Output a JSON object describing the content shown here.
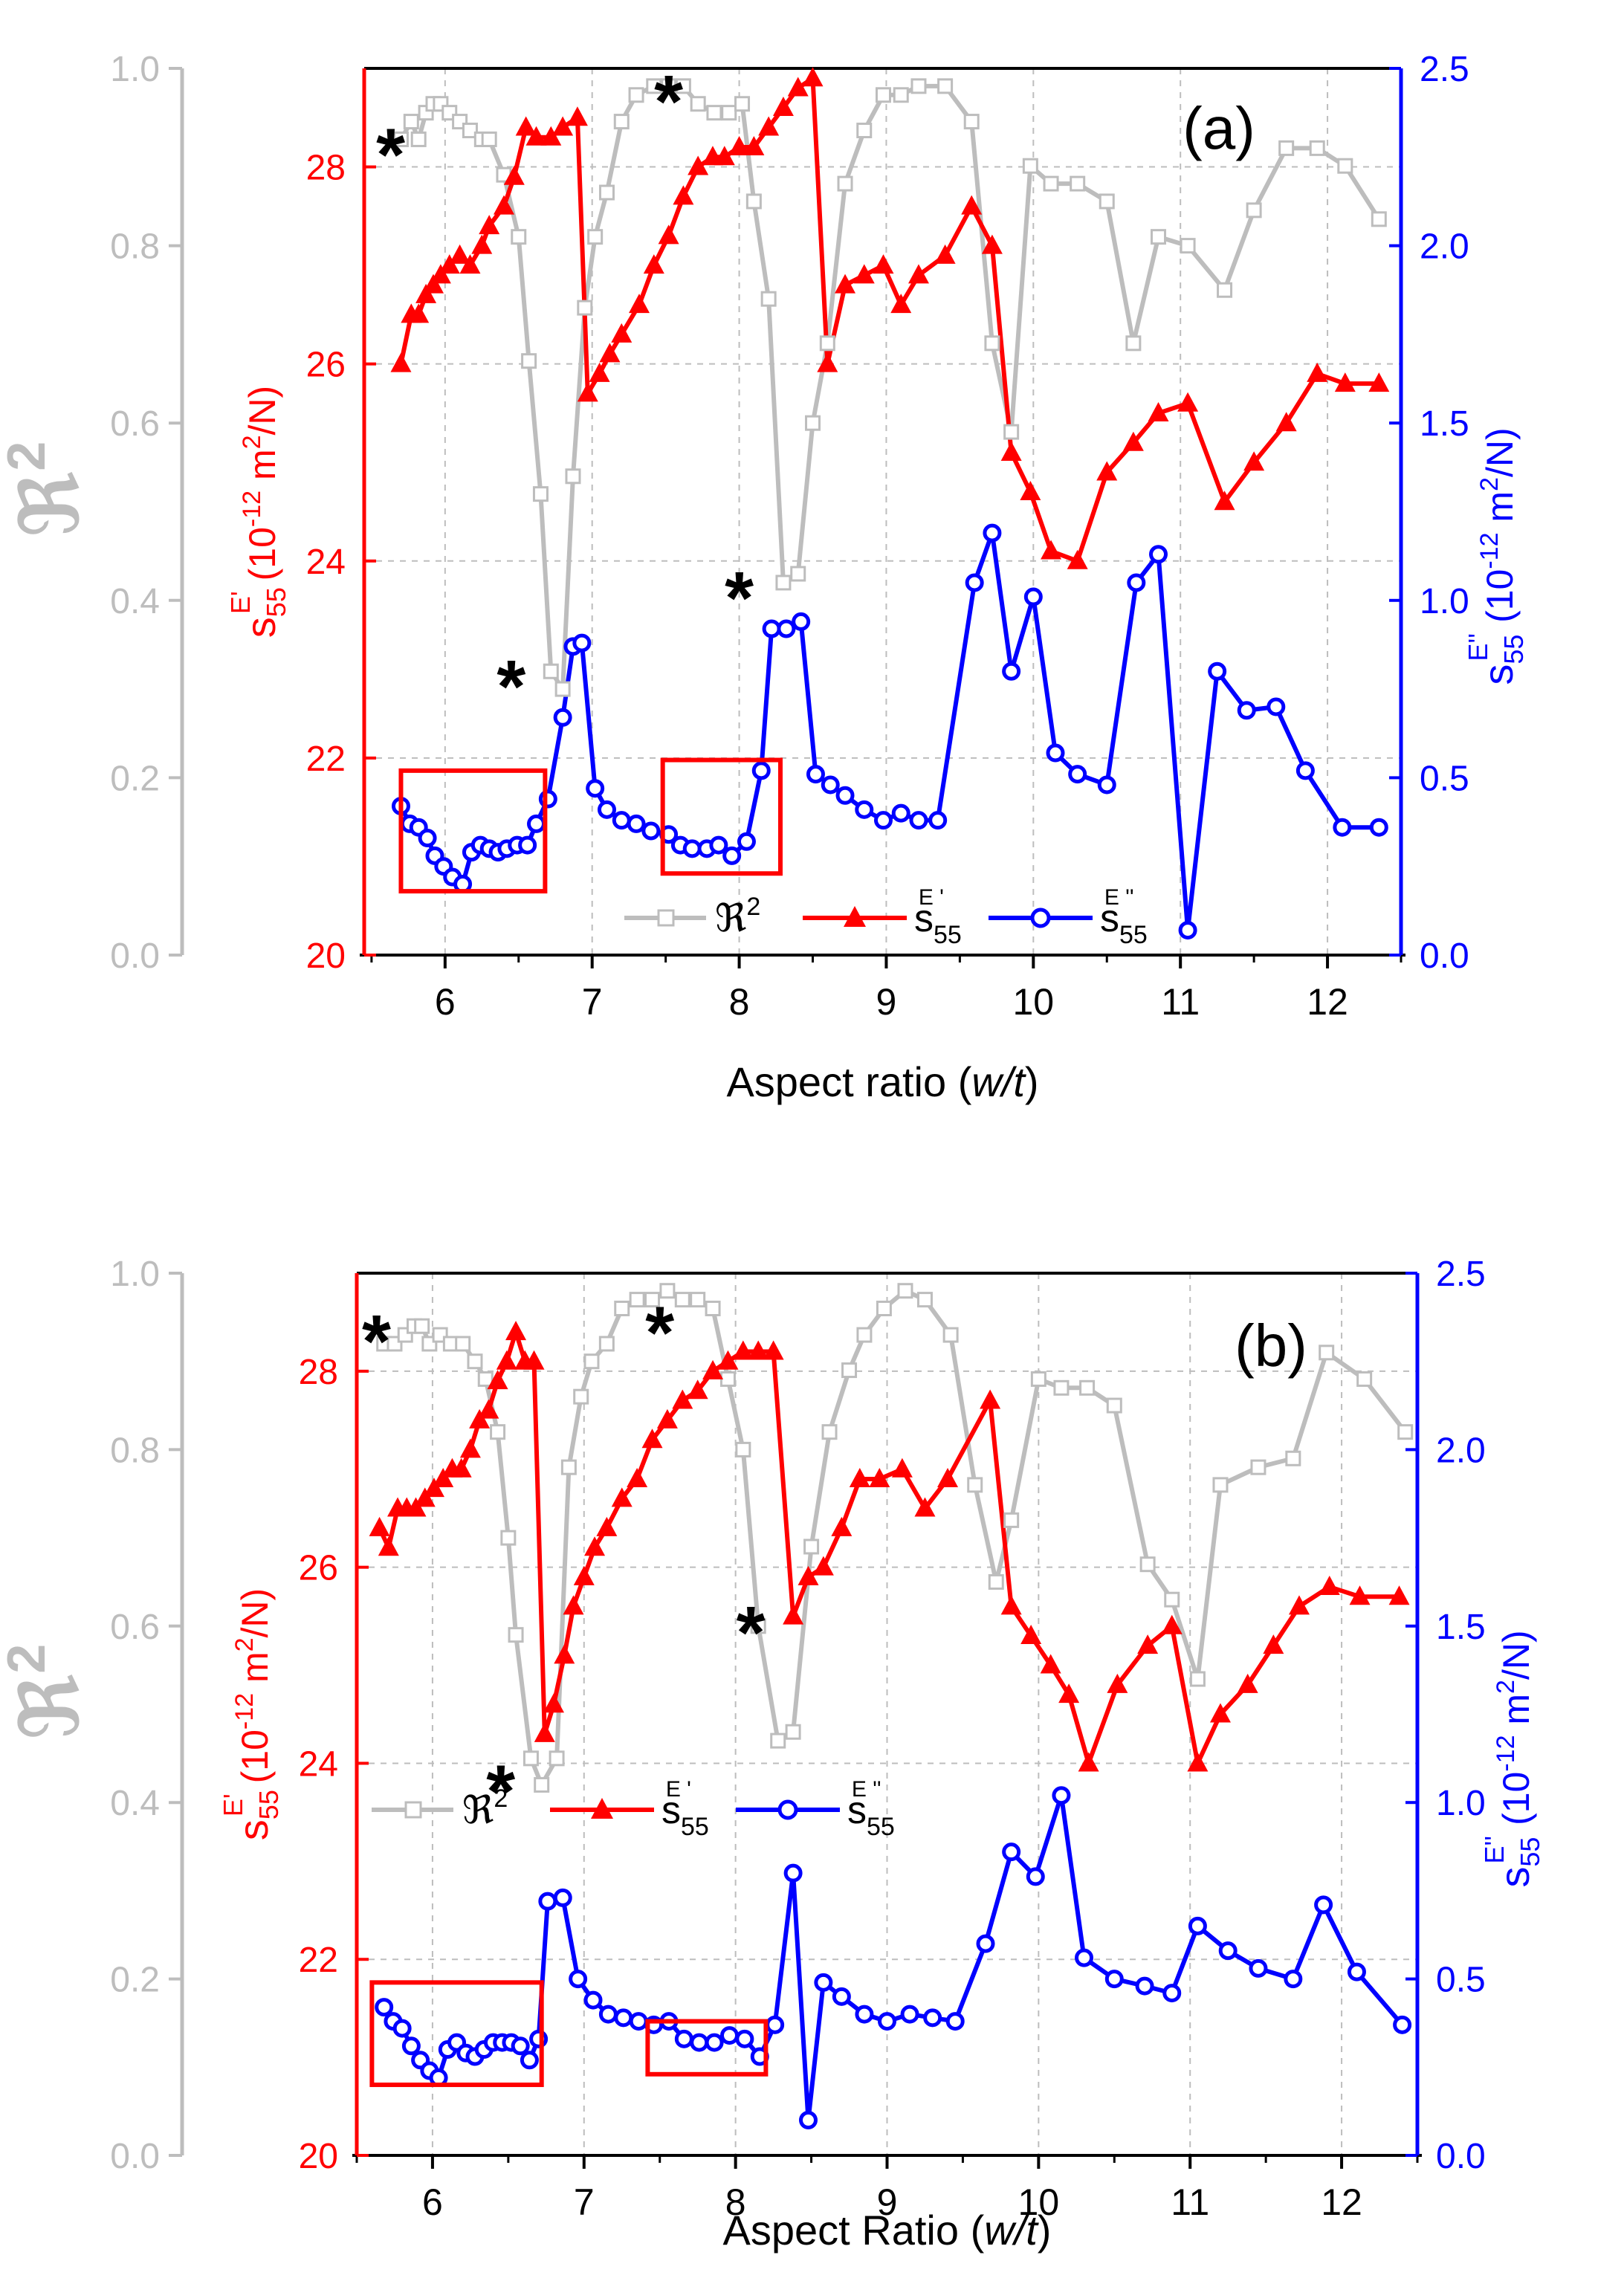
{
  "colors": {
    "r2": "#bdbdbd",
    "real": "#ff0000",
    "imag": "#0000ff",
    "box": "#ff0000",
    "grid": "#bdbdbd",
    "axis": "#000000",
    "text": "#000000"
  },
  "chart_data": [
    {
      "type": "line",
      "panel_label": "(a)",
      "xlabel_main": "Aspect ratio (",
      "xlabel_italic": "w/t",
      "xlabel_end": ")",
      "xlim": [
        5.45,
        12.5
      ],
      "xticks": [
        6,
        7,
        8,
        9,
        10,
        11,
        12
      ],
      "r2_axis": {
        "label_symbol": "ℜ",
        "label_sup": "2",
        "lim": [
          0,
          1.0
        ],
        "ticks": [
          0.0,
          0.2,
          0.4,
          0.6,
          0.8,
          1.0
        ],
        "tick_labels": [
          "0.0",
          "0.2",
          "0.4",
          "0.6",
          "0.8",
          "1.0"
        ]
      },
      "left_axis": {
        "label_main": "s",
        "label_sub": "55",
        "label_sup": "E'",
        "label_units": "(10",
        "label_exp": "-12",
        "label_units2": " m",
        "label_sq": "2",
        "label_units3": "/N)",
        "lim": [
          20,
          29
        ],
        "ticks": [
          20,
          22,
          24,
          26,
          28
        ],
        "tick_labels": [
          "20",
          "22",
          "24",
          "26",
          "28"
        ]
      },
      "right_axis": {
        "label_main": "s",
        "label_sub": "55",
        "label_sup": "E''",
        "label_units": "(10",
        "label_exp": "-12",
        "label_units2": " m",
        "label_sq": "2",
        "label_units3": "/N)",
        "lim": [
          0,
          2.5
        ],
        "ticks": [
          0.0,
          0.5,
          1.0,
          1.5,
          2.0,
          2.5
        ],
        "tick_labels": [
          "0.0",
          "0.5",
          "1.0",
          "1.5",
          "2.0",
          "2.5"
        ]
      },
      "legend": {
        "placement": "bottom-center",
        "r2_label": "ℜ",
        "r2_sup": "2",
        "real_label": "s",
        "real_sub": "55",
        "real_sup": "E '",
        "imag_label": "s",
        "imag_sub": "55",
        "imag_sup": "E ''"
      },
      "series": [
        {
          "name": "R2",
          "x": [
            5.7,
            5.77,
            5.82,
            5.87,
            5.92,
            5.97,
            6.03,
            6.1,
            6.17,
            6.25,
            6.3,
            6.4,
            6.5,
            6.57,
            6.65,
            6.72,
            6.8,
            6.87,
            6.95,
            7.02,
            7.1,
            7.2,
            7.3,
            7.42,
            7.52,
            7.62,
            7.72,
            7.83,
            7.93,
            8.02,
            8.1,
            8.2,
            8.3,
            8.4,
            8.5,
            8.6,
            8.72,
            8.85,
            8.98,
            9.1,
            9.22,
            9.4,
            9.58,
            9.72,
            9.85,
            9.98,
            10.12,
            10.3,
            10.5,
            10.68,
            10.85,
            11.05,
            11.3,
            11.5,
            11.72,
            11.93,
            12.12,
            12.35
          ],
          "values": [
            0.92,
            0.94,
            0.92,
            0.95,
            0.96,
            0.96,
            0.95,
            0.94,
            0.93,
            0.92,
            0.92,
            0.88,
            0.81,
            0.67,
            0.52,
            0.32,
            0.3,
            0.54,
            0.73,
            0.81,
            0.86,
            0.94,
            0.97,
            0.98,
            0.98,
            0.98,
            0.96,
            0.95,
            0.95,
            0.96,
            0.85,
            0.74,
            0.42,
            0.43,
            0.6,
            0.69,
            0.87,
            0.93,
            0.97,
            0.97,
            0.98,
            0.98,
            0.94,
            0.69,
            0.59,
            0.89,
            0.87,
            0.87,
            0.85,
            0.69,
            0.81,
            0.8,
            0.75,
            0.84,
            0.91,
            0.91,
            0.89,
            0.83
          ]
        },
        {
          "name": "s55E'",
          "x": [
            5.7,
            5.77,
            5.82,
            5.87,
            5.92,
            5.97,
            6.03,
            6.1,
            6.17,
            6.25,
            6.3,
            6.4,
            6.47,
            6.55,
            6.62,
            6.72,
            6.8,
            6.9,
            6.97,
            7.05,
            7.12,
            7.2,
            7.32,
            7.42,
            7.52,
            7.62,
            7.72,
            7.82,
            7.9,
            8.0,
            8.1,
            8.2,
            8.3,
            8.4,
            8.5,
            8.6,
            8.72,
            8.85,
            8.98,
            9.1,
            9.22,
            9.4,
            9.58,
            9.72,
            9.85,
            9.98,
            10.12,
            10.3,
            10.5,
            10.68,
            10.85,
            11.05,
            11.3,
            11.5,
            11.72,
            11.93,
            12.12,
            12.35
          ],
          "values": [
            26.0,
            26.5,
            26.5,
            26.7,
            26.8,
            26.9,
            27.0,
            27.1,
            27.0,
            27.2,
            27.4,
            27.6,
            27.9,
            28.4,
            28.3,
            28.3,
            28.4,
            28.5,
            25.7,
            25.9,
            26.1,
            26.3,
            26.6,
            27.0,
            27.3,
            27.7,
            28.0,
            28.1,
            28.1,
            28.2,
            28.2,
            28.4,
            28.6,
            28.8,
            28.9,
            26.0,
            26.8,
            26.9,
            27.0,
            26.6,
            26.9,
            27.1,
            27.6,
            27.2,
            25.1,
            24.7,
            24.1,
            24.0,
            24.9,
            25.2,
            25.5,
            25.6,
            24.6,
            25.0,
            25.4,
            25.9,
            25.8,
            25.8
          ]
        },
        {
          "name": "s55E''",
          "x": [
            5.7,
            5.76,
            5.82,
            5.88,
            5.93,
            5.99,
            6.05,
            6.12,
            6.18,
            6.24,
            6.3,
            6.36,
            6.42,
            6.49,
            6.56,
            6.62,
            6.7,
            6.8,
            6.87,
            6.93,
            7.02,
            7.1,
            7.2,
            7.3,
            7.4,
            7.52,
            7.6,
            7.68,
            7.78,
            7.86,
            7.95,
            8.05,
            8.15,
            8.22,
            8.32,
            8.42,
            8.52,
            8.62,
            8.72,
            8.85,
            8.98,
            9.1,
            9.22,
            9.35,
            9.6,
            9.72,
            9.85,
            10.0,
            10.15,
            10.3,
            10.5,
            10.7,
            10.85,
            11.05,
            11.25,
            11.45,
            11.65,
            11.85,
            12.1,
            12.35
          ],
          "values": [
            0.42,
            0.37,
            0.36,
            0.33,
            0.28,
            0.25,
            0.22,
            0.2,
            0.29,
            0.31,
            0.3,
            0.29,
            0.3,
            0.31,
            0.31,
            0.37,
            0.44,
            0.67,
            0.87,
            0.88,
            0.47,
            0.41,
            0.38,
            0.37,
            0.35,
            0.34,
            0.31,
            0.3,
            0.3,
            0.31,
            0.28,
            0.32,
            0.52,
            0.92,
            0.92,
            0.94,
            0.51,
            0.48,
            0.45,
            0.41,
            0.38,
            0.4,
            0.38,
            0.38,
            1.05,
            1.19,
            0.8,
            1.01,
            0.57,
            0.51,
            0.48,
            1.05,
            1.13,
            0.07,
            0.8,
            0.69,
            0.7,
            0.52,
            0.36,
            0.36
          ]
        }
      ],
      "boxes": [
        {
          "x": [
            5.7,
            6.68
          ],
          "y": [
            0.18,
            0.52
          ]
        },
        {
          "x": [
            7.48,
            8.28
          ],
          "y": [
            0.23,
            0.55
          ]
        }
      ],
      "asterisks": [
        {
          "text": "*",
          "x": 5.63,
          "r2": 0.92
        },
        {
          "text": "*",
          "x": 7.52,
          "r2": 0.98
        },
        {
          "text": "*",
          "x": 6.45,
          "r2": 0.32
        },
        {
          "text": "*",
          "x": 8.0,
          "r2": 0.42
        }
      ]
    },
    {
      "type": "line",
      "panel_label": "(b)",
      "xlabel_main": "Aspect Ratio (",
      "xlabel_italic": "w/t",
      "xlabel_end": ")",
      "xlim": [
        5.5,
        12.5
      ],
      "xticks": [
        6,
        7,
        8,
        9,
        10,
        11,
        12
      ],
      "r2_axis": {
        "label_symbol": "ℜ",
        "label_sup": "2",
        "lim": [
          0,
          1.0
        ],
        "ticks": [
          0.0,
          0.2,
          0.4,
          0.6,
          0.8,
          1.0
        ],
        "tick_labels": [
          "0.0",
          "0.2",
          "0.4",
          "0.6",
          "0.8",
          "1.0"
        ]
      },
      "left_axis": {
        "label_main": "s",
        "label_sub": "55",
        "label_sup": "E'",
        "label_units": "(10",
        "label_exp": "-12",
        "label_units2": " m",
        "label_sq": "2",
        "label_units3": "/N)",
        "lim": [
          20,
          29
        ],
        "ticks": [
          20,
          22,
          24,
          26,
          28
        ],
        "tick_labels": [
          "20",
          "22",
          "24",
          "26",
          "28"
        ]
      },
      "right_axis": {
        "label_main": "s",
        "label_sub": "55",
        "label_sup": "E''",
        "label_units": "(10",
        "label_exp": "-12",
        "label_units2": " m",
        "label_sq": "2",
        "label_units3": "/N)",
        "lim": [
          0,
          2.5
        ],
        "ticks": [
          0.0,
          0.5,
          1.0,
          1.5,
          2.0,
          2.5
        ],
        "tick_labels": [
          "0.0",
          "0.5",
          "1.0",
          "1.5",
          "2.0",
          "2.5"
        ]
      },
      "legend": {
        "placement": "middle-left",
        "r2_label": "ℜ",
        "r2_sup": "2",
        "real_label": "s",
        "real_sub": "55",
        "real_sup": "E '",
        "imag_label": "s",
        "imag_sub": "55",
        "imag_sup": "E ''"
      },
      "series": [
        {
          "name": "R2",
          "x": [
            5.68,
            5.75,
            5.82,
            5.88,
            5.93,
            5.98,
            6.05,
            6.12,
            6.2,
            6.28,
            6.35,
            6.43,
            6.5,
            6.55,
            6.65,
            6.72,
            6.82,
            6.9,
            6.98,
            7.05,
            7.15,
            7.25,
            7.35,
            7.45,
            7.55,
            7.65,
            7.75,
            7.85,
            7.95,
            8.05,
            8.15,
            8.28,
            8.38,
            8.5,
            8.62,
            8.75,
            8.85,
            8.98,
            9.12,
            9.25,
            9.42,
            9.58,
            9.72,
            9.82,
            10.0,
            10.15,
            10.32,
            10.5,
            10.72,
            10.88,
            11.05,
            11.2,
            11.45,
            11.68,
            11.9,
            12.15,
            12.42
          ],
          "values": [
            0.92,
            0.92,
            0.93,
            0.94,
            0.94,
            0.92,
            0.93,
            0.92,
            0.92,
            0.9,
            0.88,
            0.82,
            0.7,
            0.59,
            0.45,
            0.42,
            0.45,
            0.78,
            0.86,
            0.9,
            0.92,
            0.96,
            0.97,
            0.97,
            0.98,
            0.97,
            0.97,
            0.96,
            0.88,
            0.8,
            0.6,
            0.47,
            0.48,
            0.69,
            0.82,
            0.89,
            0.93,
            0.96,
            0.98,
            0.97,
            0.93,
            0.76,
            0.65,
            0.72,
            0.88,
            0.87,
            0.87,
            0.85,
            0.67,
            0.63,
            0.54,
            0.76,
            0.78,
            0.79,
            0.91,
            0.88,
            0.82
          ]
        },
        {
          "name": "s55E'",
          "x": [
            5.65,
            5.71,
            5.77,
            5.83,
            5.89,
            5.95,
            6.01,
            6.07,
            6.13,
            6.19,
            6.25,
            6.31,
            6.37,
            6.43,
            6.49,
            6.55,
            6.61,
            6.67,
            6.74,
            6.8,
            6.87,
            6.93,
            7.0,
            7.07,
            7.15,
            7.25,
            7.35,
            7.45,
            7.55,
            7.65,
            7.75,
            7.85,
            7.95,
            8.05,
            8.15,
            8.25,
            8.38,
            8.48,
            8.58,
            8.7,
            8.82,
            8.95,
            9.1,
            9.25,
            9.4,
            9.68,
            9.82,
            9.95,
            10.08,
            10.2,
            10.33,
            10.52,
            10.72,
            10.88,
            11.05,
            11.2,
            11.38,
            11.55,
            11.72,
            11.92,
            12.12,
            12.38
          ],
          "values": [
            26.4,
            26.2,
            26.6,
            26.6,
            26.6,
            26.7,
            26.8,
            26.9,
            27.0,
            27.0,
            27.2,
            27.5,
            27.6,
            27.9,
            28.1,
            28.4,
            28.1,
            28.1,
            24.3,
            24.6,
            25.1,
            25.6,
            25.9,
            26.2,
            26.4,
            26.7,
            26.9,
            27.3,
            27.5,
            27.7,
            27.8,
            28.0,
            28.1,
            28.2,
            28.2,
            28.2,
            25.5,
            25.9,
            26.0,
            26.4,
            26.9,
            26.9,
            27.0,
            26.6,
            26.9,
            27.7,
            25.6,
            25.3,
            25.0,
            24.7,
            24.0,
            24.8,
            25.2,
            25.4,
            24.0,
            24.5,
            24.8,
            25.2,
            25.6,
            25.8,
            25.7,
            25.7
          ]
        },
        {
          "name": "s55E''",
          "x": [
            5.68,
            5.74,
            5.8,
            5.86,
            5.92,
            5.98,
            6.04,
            6.1,
            6.16,
            6.22,
            6.28,
            6.34,
            6.4,
            6.46,
            6.52,
            6.58,
            6.64,
            6.7,
            6.76,
            6.86,
            6.96,
            7.06,
            7.16,
            7.26,
            7.36,
            7.46,
            7.56,
            7.66,
            7.76,
            7.86,
            7.96,
            8.06,
            8.16,
            8.26,
            8.38,
            8.48,
            8.58,
            8.7,
            8.85,
            9.0,
            9.15,
            9.3,
            9.45,
            9.65,
            9.82,
            9.98,
            10.15,
            10.3,
            10.5,
            10.7,
            10.88,
            11.05,
            11.25,
            11.45,
            11.68,
            11.88,
            12.1,
            12.4
          ],
          "values": [
            0.42,
            0.38,
            0.36,
            0.31,
            0.27,
            0.24,
            0.22,
            0.3,
            0.32,
            0.29,
            0.28,
            0.3,
            0.32,
            0.32,
            0.32,
            0.31,
            0.27,
            0.33,
            0.72,
            0.73,
            0.5,
            0.44,
            0.4,
            0.39,
            0.38,
            0.37,
            0.38,
            0.33,
            0.32,
            0.32,
            0.34,
            0.33,
            0.28,
            0.37,
            0.8,
            0.1,
            0.49,
            0.45,
            0.4,
            0.38,
            0.4,
            0.39,
            0.38,
            0.6,
            0.86,
            0.79,
            1.02,
            0.56,
            0.5,
            0.48,
            0.46,
            0.65,
            0.58,
            0.53,
            0.5,
            0.71,
            0.52,
            0.37
          ]
        }
      ],
      "boxes": [
        {
          "x": [
            5.6,
            6.72
          ],
          "y": [
            0.2,
            0.49
          ]
        },
        {
          "x": [
            7.42,
            8.2
          ],
          "y": [
            0.23,
            0.38
          ]
        }
      ],
      "asterisks": [
        {
          "text": "*",
          "x": 5.63,
          "r2": 0.94
        },
        {
          "text": "*",
          "x": 7.5,
          "r2": 0.95
        },
        {
          "text": "*",
          "x": 6.45,
          "r2": 0.43
        },
        {
          "text": "*",
          "x": 8.1,
          "r2": 0.61
        }
      ]
    }
  ]
}
